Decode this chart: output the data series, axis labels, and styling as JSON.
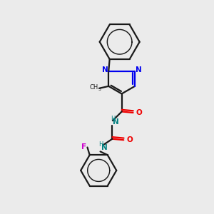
{
  "bg_color": "#ebebeb",
  "bond_color": "#1a1a1a",
  "nitrogen_color": "#0000ee",
  "oxygen_color": "#ee0000",
  "fluorine_color": "#cc00cc",
  "nh_color": "#008080",
  "line_width": 1.6,
  "figsize": [
    3.0,
    3.0
  ],
  "dpi": 100,
  "xlim": [
    0,
    10
  ],
  "ylim": [
    0,
    10
  ]
}
